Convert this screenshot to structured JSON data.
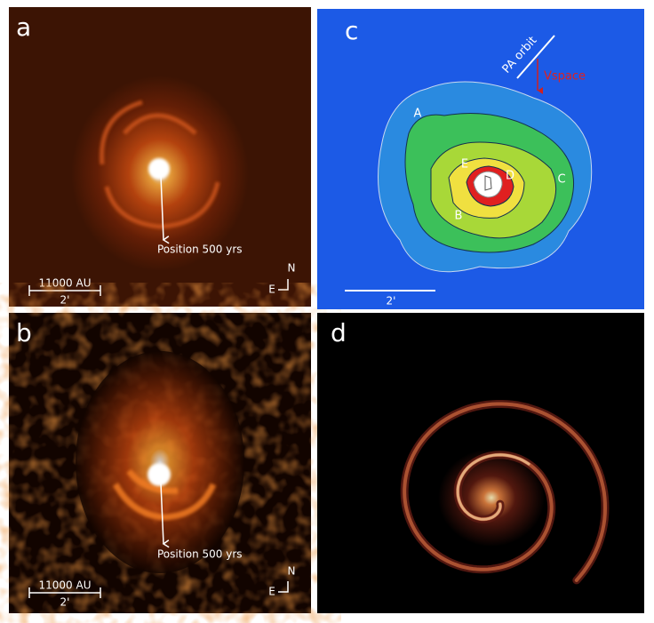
{
  "panels": [
    {
      "label": "a",
      "annotation": "Position 500 yrs",
      "scale_bar": {
        "length": "11000 AU",
        "angle": "2'"
      },
      "compass": {
        "north": "N",
        "east": "E"
      }
    },
    {
      "label": "b",
      "annotation": "Position 500 yrs",
      "scale_bar": {
        "length": "11000 AU",
        "angle": "2'"
      },
      "compass": {
        "north": "N",
        "east": "E"
      }
    },
    {
      "label": "c",
      "orbit_label": "PA orbit",
      "velocity_label": "Vspace",
      "clumps": [
        "A",
        "B",
        "C",
        "D",
        "E"
      ],
      "scale_bar": {
        "angle": "2'"
      }
    },
    {
      "label": "d"
    }
  ]
}
